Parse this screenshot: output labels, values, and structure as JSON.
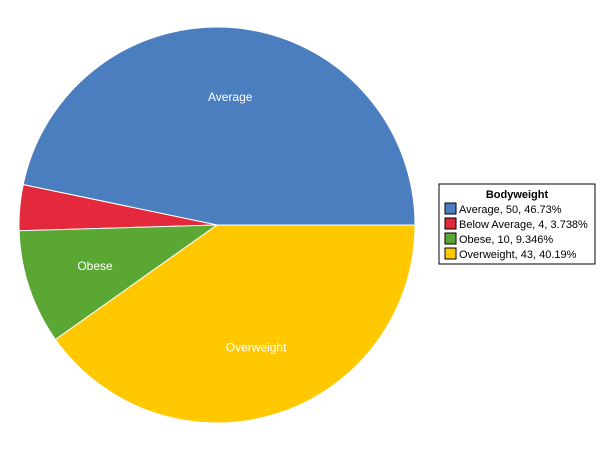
{
  "chart_data": {
    "type": "pie",
    "legend_title": "Bodyweight",
    "legend_position": "right",
    "slices": [
      {
        "label": "Average",
        "value": 50,
        "percent": "46.73%",
        "legend": "Average, 50, 46.73%",
        "color": "#4a7ebf",
        "show_label": true
      },
      {
        "label": "Below Average",
        "value": 4,
        "percent": "3.738%",
        "legend": "Below Average, 4, 3.738%",
        "color": "#e3293b",
        "show_label": false
      },
      {
        "label": "Obese",
        "value": 10,
        "percent": "9.346%",
        "legend": "Obese, 10, 9.346%",
        "color": "#5aa833",
        "show_label": true
      },
      {
        "label": "Overweight",
        "value": 43,
        "percent": "40.19%",
        "legend": "Overweight, 43, 40.19%",
        "color": "#ffc800",
        "show_label": true
      }
    ]
  }
}
